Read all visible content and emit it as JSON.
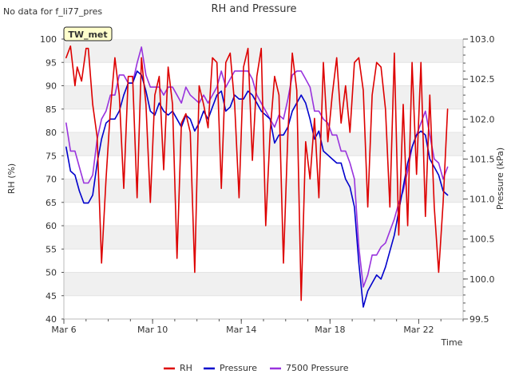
{
  "header": {
    "status": "No data for f_li77_pres",
    "site_tag": "TW_met"
  },
  "chart_data": {
    "type": "line",
    "title": "RH and Pressure",
    "xlabel": "Time",
    "ylabel_left": "RH (%)",
    "ylabel_right": "Pressure (kPa)",
    "x_ticks": [
      "Mar 6",
      "Mar 10",
      "Mar 14",
      "Mar 18",
      "Mar 22"
    ],
    "x_range_days": [
      6,
      24
    ],
    "y_left_range": [
      40,
      100
    ],
    "y_left_ticks": [
      40,
      45,
      50,
      55,
      60,
      65,
      70,
      75,
      80,
      85,
      90,
      95,
      100
    ],
    "y_right_range": [
      99.5,
      103.0
    ],
    "y_right_ticks": [
      99.5,
      100.0,
      100.5,
      101.0,
      101.5,
      102.0,
      102.5,
      103.0
    ],
    "grid": "horizontal-bands",
    "legend_position": "bottom",
    "colors": {
      "RH": "#dd0000",
      "Pressure": "#0000cc",
      "7500 Pressure": "#9933dd"
    },
    "series": [
      {
        "name": "RH",
        "axis": "left",
        "x": [
          6.1,
          6.3,
          6.5,
          6.6,
          6.8,
          7.0,
          7.1,
          7.3,
          7.5,
          7.7,
          7.9,
          8.1,
          8.3,
          8.5,
          8.7,
          8.9,
          9.1,
          9.3,
          9.5,
          9.7,
          9.9,
          10.1,
          10.3,
          10.5,
          10.7,
          10.9,
          11.1,
          11.3,
          11.5,
          11.7,
          11.9,
          12.1,
          12.3,
          12.5,
          12.7,
          12.9,
          13.1,
          13.3,
          13.5,
          13.7,
          13.9,
          14.1,
          14.3,
          14.5,
          14.7,
          14.9,
          15.1,
          15.3,
          15.5,
          15.7,
          15.9,
          16.1,
          16.3,
          16.5,
          16.7,
          16.9,
          17.1,
          17.3,
          17.5,
          17.7,
          17.9,
          18.1,
          18.3,
          18.5,
          18.7,
          18.9,
          19.1,
          19.3,
          19.5,
          19.7,
          19.9,
          20.1,
          20.3,
          20.5,
          20.7,
          20.9,
          21.1,
          21.3,
          21.5,
          21.7,
          21.9,
          22.1,
          22.3,
          22.5,
          22.7,
          22.9,
          23.1,
          23.3
        ],
        "values": [
          96,
          98.5,
          90,
          94,
          91,
          98,
          98,
          86,
          79,
          52,
          70,
          85,
          96,
          88,
          68,
          92,
          92,
          66,
          96,
          86,
          65,
          88,
          92,
          72,
          94,
          86,
          53,
          82,
          84,
          80,
          50,
          90,
          86,
          81,
          96,
          95,
          68,
          95,
          97,
          86,
          66,
          94,
          98,
          74,
          92,
          98,
          60,
          80,
          92,
          88,
          52,
          80,
          97,
          89,
          44,
          78,
          70,
          83,
          66,
          95,
          78,
          88,
          96,
          82,
          90,
          80,
          95,
          96,
          89,
          64,
          88,
          95,
          94,
          85,
          64,
          97,
          58,
          86,
          60,
          95,
          71,
          95,
          62,
          88,
          64,
          50,
          65,
          85
        ]
      },
      {
        "name": "Pressure",
        "axis": "right",
        "x": [
          6.1,
          6.3,
          6.5,
          6.7,
          6.9,
          7.1,
          7.3,
          7.5,
          7.7,
          7.9,
          8.1,
          8.3,
          8.5,
          8.7,
          8.9,
          9.1,
          9.3,
          9.5,
          9.7,
          9.9,
          10.1,
          10.3,
          10.5,
          10.7,
          10.9,
          11.1,
          11.3,
          11.5,
          11.7,
          11.9,
          12.1,
          12.3,
          12.5,
          12.7,
          12.9,
          13.1,
          13.3,
          13.5,
          13.7,
          13.9,
          14.1,
          14.3,
          14.5,
          14.7,
          14.9,
          15.1,
          15.3,
          15.5,
          15.7,
          15.9,
          16.1,
          16.3,
          16.5,
          16.7,
          16.9,
          17.1,
          17.3,
          17.5,
          17.7,
          17.9,
          18.1,
          18.3,
          18.5,
          18.7,
          18.9,
          19.1,
          19.3,
          19.5,
          19.7,
          19.9,
          20.1,
          20.3,
          20.5,
          20.7,
          20.9,
          21.1,
          21.3,
          21.5,
          21.7,
          21.9,
          22.1,
          22.3,
          22.5,
          22.7,
          22.9,
          23.1,
          23.3
        ],
        "values": [
          101.65,
          101.35,
          101.3,
          101.1,
          100.95,
          100.95,
          101.05,
          101.45,
          101.75,
          101.95,
          102.0,
          102.0,
          102.1,
          102.3,
          102.45,
          102.45,
          102.6,
          102.55,
          102.35,
          102.1,
          102.05,
          102.2,
          102.1,
          102.05,
          102.1,
          102.0,
          101.9,
          102.05,
          102.0,
          101.85,
          101.95,
          102.1,
          102.0,
          102.15,
          102.3,
          102.35,
          102.1,
          102.15,
          102.3,
          102.25,
          102.25,
          102.35,
          102.3,
          102.2,
          102.1,
          102.05,
          102.0,
          101.7,
          101.8,
          101.8,
          101.9,
          102.1,
          102.2,
          102.3,
          102.2,
          102.0,
          101.75,
          101.85,
          101.6,
          101.55,
          101.5,
          101.45,
          101.45,
          101.25,
          101.15,
          100.9,
          100.2,
          99.65,
          99.85,
          99.95,
          100.05,
          100.0,
          100.15,
          100.35,
          100.55,
          100.85,
          101.15,
          101.45,
          101.65,
          101.8,
          101.85,
          101.8,
          101.5,
          101.4,
          101.3,
          101.1,
          101.05
        ]
      },
      {
        "name": "7500 Pressure",
        "axis": "right",
        "x": [
          6.1,
          6.3,
          6.5,
          6.7,
          6.9,
          7.1,
          7.3,
          7.5,
          7.7,
          7.9,
          8.1,
          8.3,
          8.5,
          8.7,
          8.9,
          9.1,
          9.3,
          9.5,
          9.7,
          9.9,
          10.1,
          10.3,
          10.5,
          10.7,
          10.9,
          11.1,
          11.3,
          11.5,
          11.7,
          11.9,
          12.1,
          12.3,
          12.5,
          12.7,
          12.9,
          13.1,
          13.3,
          13.5,
          13.7,
          13.9,
          14.1,
          14.3,
          14.5,
          14.7,
          14.9,
          15.1,
          15.3,
          15.5,
          15.7,
          15.9,
          16.1,
          16.3,
          16.5,
          16.7,
          16.9,
          17.1,
          17.3,
          17.5,
          17.7,
          17.9,
          18.1,
          18.3,
          18.5,
          18.7,
          18.9,
          19.1,
          19.3,
          19.5,
          19.7,
          19.9,
          20.1,
          20.3,
          20.5,
          20.7,
          20.9,
          21.1,
          21.3,
          21.5,
          21.7,
          21.9,
          22.1,
          22.3,
          22.5,
          22.7,
          22.9,
          23.1,
          23.3
        ],
        "values": [
          101.95,
          101.6,
          101.6,
          101.4,
          101.2,
          101.2,
          101.3,
          101.75,
          102.0,
          102.1,
          102.3,
          102.3,
          102.55,
          102.55,
          102.45,
          102.45,
          102.7,
          102.9,
          102.55,
          102.4,
          102.4,
          102.4,
          102.3,
          102.4,
          102.4,
          102.3,
          102.2,
          102.4,
          102.3,
          102.25,
          102.2,
          102.3,
          102.2,
          102.3,
          102.4,
          102.6,
          102.4,
          102.5,
          102.6,
          102.6,
          102.6,
          102.6,
          102.5,
          102.3,
          102.2,
          102.1,
          102.0,
          101.9,
          102.05,
          102.0,
          102.25,
          102.55,
          102.6,
          102.6,
          102.5,
          102.4,
          102.1,
          102.1,
          102.0,
          101.95,
          101.8,
          101.8,
          101.6,
          101.6,
          101.45,
          101.25,
          100.4,
          99.9,
          100.05,
          100.3,
          100.3,
          100.4,
          100.45,
          100.6,
          100.75,
          100.95,
          101.1,
          101.35,
          101.65,
          101.8,
          101.95,
          102.1,
          101.8,
          101.5,
          101.45,
          101.25,
          101.4
        ]
      }
    ]
  }
}
